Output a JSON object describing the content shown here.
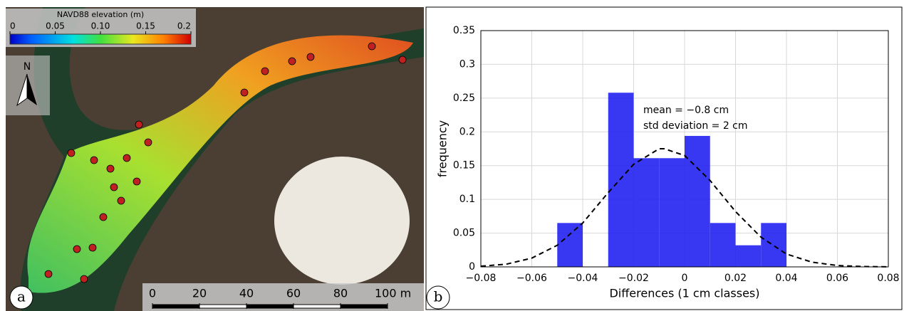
{
  "map": {
    "panel_label": "a",
    "colorbar_title": "NAVD88 elevation (m)",
    "colorbar_ticks": [
      0,
      0.05,
      {
        "value": 0.1,
        "label": "0.10"
      },
      0.15,
      0.2
    ],
    "north_label": "N",
    "scale_ticks": [
      0,
      20,
      40,
      60,
      80,
      {
        "value": 100,
        "label": "100 m"
      }
    ]
  },
  "chart_data": {
    "type": "histogram",
    "panel_label": "b",
    "xlabel": "Differences (1 cm classes)",
    "ylabel": "frequency",
    "annotations": [
      "mean = −0.8 cm",
      "std deviation = 2 cm"
    ],
    "bins": [
      -0.05,
      -0.04,
      -0.03,
      -0.02,
      -0.01,
      0,
      0.01,
      0.02,
      0.03,
      0.04
    ],
    "counts": [
      0.065,
      0,
      0.258,
      0.161,
      0.161,
      0.194,
      0.065,
      0.032,
      0.065
    ],
    "color": "#2222f2",
    "fit": {
      "x": [
        -0.08,
        -0.07,
        -0.06,
        -0.05,
        -0.04,
        -0.03,
        -0.02,
        -0.01,
        -0.008,
        0,
        0.01,
        0.02,
        0.03,
        0.04,
        0.05,
        0.06,
        0.07,
        0.08
      ],
      "y": [
        0.001,
        0.004,
        0.013,
        0.032,
        0.065,
        0.11,
        0.152,
        0.175,
        0.175,
        0.165,
        0.128,
        0.082,
        0.044,
        0.019,
        0.007,
        0.002,
        0.0005,
        0.0001
      ],
      "color": "#000000"
    },
    "xlim": [
      -0.08,
      0.08
    ],
    "xticks": [
      {
        "value": -0.08,
        "label": "−0.08"
      },
      {
        "value": -0.06,
        "label": "−0.06"
      },
      {
        "value": -0.04,
        "label": "−0.04"
      },
      {
        "value": -0.02,
        "label": "−0.02"
      },
      0,
      0.02,
      0.04,
      0.06,
      0.08
    ],
    "ylim": [
      0,
      0.35
    ],
    "yticks": [
      0,
      0.05,
      0.1,
      0.15,
      0.2,
      0.25,
      0.3,
      0.35
    ],
    "grid": true
  }
}
